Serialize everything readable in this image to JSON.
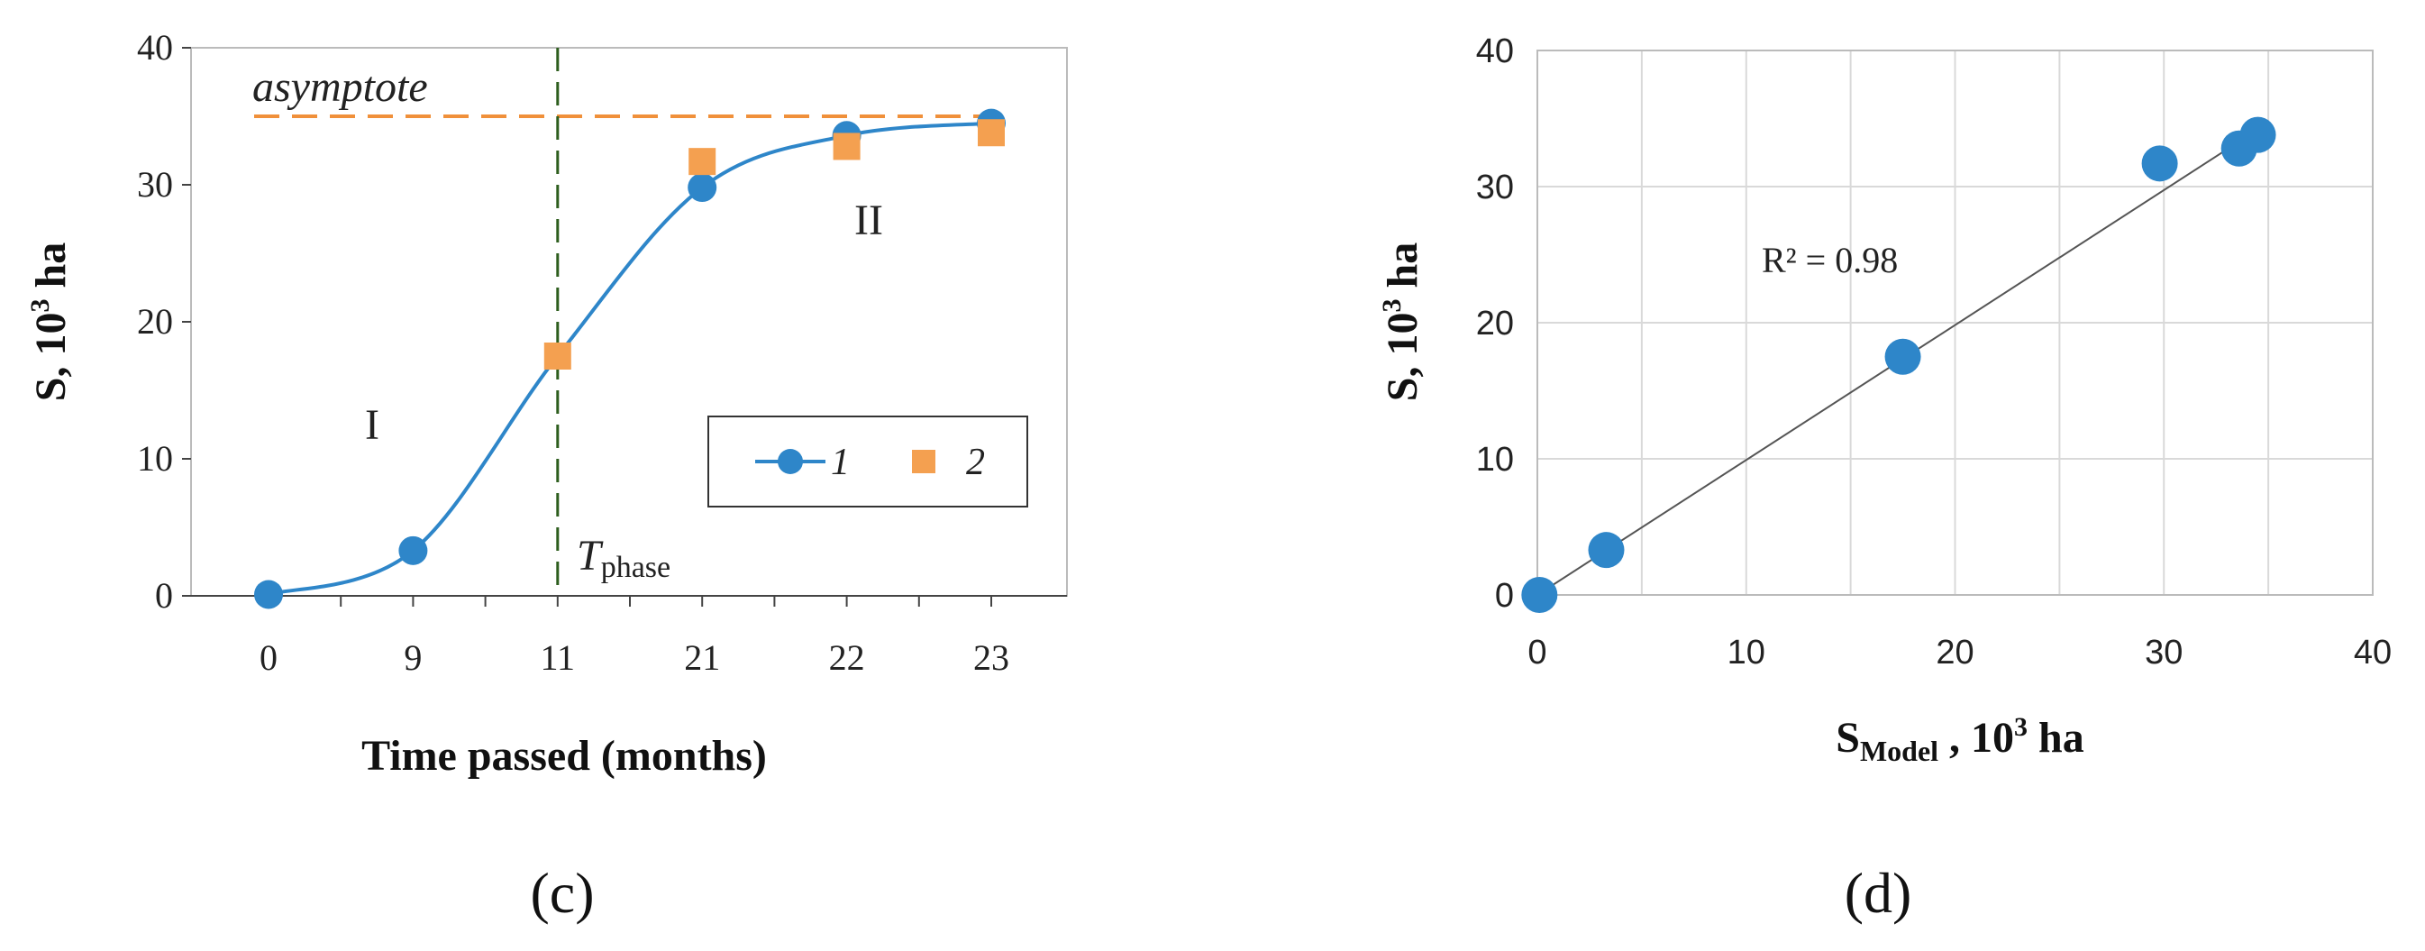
{
  "colors": {
    "model": "#2e86c9",
    "observed": "#f4a050",
    "phase_line": "#2e5e1e",
    "asymptote": "#f0903a",
    "fit": "#555555"
  },
  "chart_data": [
    {
      "panel": "(c)",
      "type": "line",
      "xlabel": "Time passed (months)",
      "ylabel_main": "S, 10",
      "ylabel_sup": "3",
      "ylabel_tail": " ha",
      "ylim": [
        0,
        40
      ],
      "yticks": [
        "0",
        "10",
        "20",
        "30",
        "40"
      ],
      "categories": [
        "0",
        "9",
        "11",
        "21",
        "22",
        "23"
      ],
      "series": [
        {
          "name": "1",
          "values": [
            0.1,
            3.3,
            17.5,
            29.8,
            33.6,
            34.5
          ]
        },
        {
          "name": "2",
          "values": [
            null,
            null,
            17.5,
            31.7,
            32.8,
            33.8
          ]
        }
      ],
      "annotations": {
        "asymptote_label": "asymptote",
        "asymptote_value": 35,
        "phase_symbol": "T",
        "phase_sub": "phase",
        "phase_category": "11",
        "region_1": "I",
        "region_2": "II"
      }
    },
    {
      "panel": "(d)",
      "type": "scatter",
      "xlabel_main": "S",
      "xlabel_sub": "Model",
      "xlabel_tail": " , 10",
      "xlabel_sup": "3",
      "xlabel_end": " ha",
      "ylabel_main": "S, 10",
      "ylabel_sup": "3",
      "ylabel_tail": " ha",
      "xlim": [
        0,
        40
      ],
      "ylim": [
        0,
        40
      ],
      "xticks": [
        "0",
        "10",
        "20",
        "30",
        "40"
      ],
      "yticks": [
        "0",
        "10",
        "20",
        "30",
        "40"
      ],
      "points": [
        {
          "x": 0.1,
          "y": 0.0
        },
        {
          "x": 3.3,
          "y": 3.3
        },
        {
          "x": 17.5,
          "y": 17.5
        },
        {
          "x": 29.8,
          "y": 31.7
        },
        {
          "x": 33.6,
          "y": 32.8
        },
        {
          "x": 34.5,
          "y": 33.8
        }
      ],
      "fit_line": {
        "x": [
          0,
          34.5
        ],
        "y": [
          0,
          34.2
        ]
      },
      "r2_label": "R² = 0.98",
      "grid": true
    }
  ]
}
